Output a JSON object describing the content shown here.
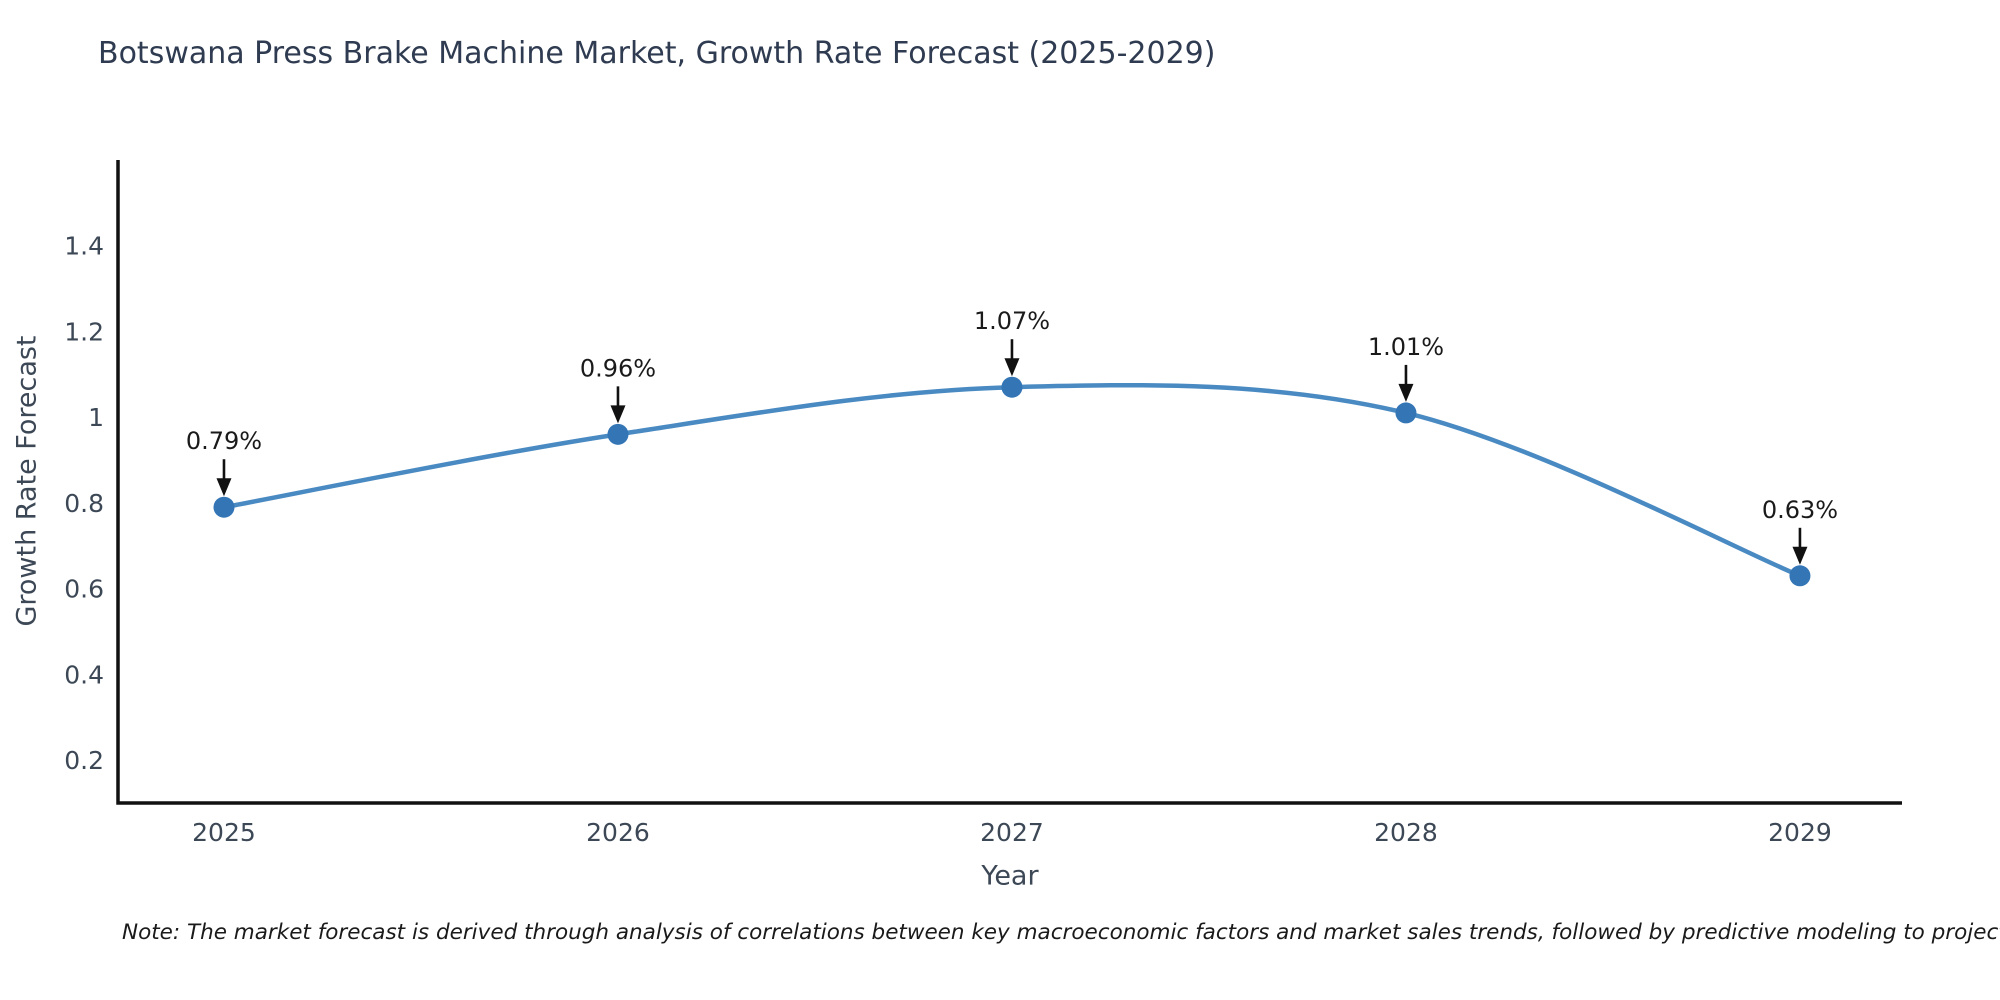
{
  "chart_data": {
    "type": "line",
    "title": "Botswana Press Brake Machine Market, Growth Rate Forecast (2025-2029)",
    "xlabel": "Year",
    "ylabel": "Growth Rate Forecast",
    "x": [
      2025,
      2026,
      2027,
      2028,
      2029
    ],
    "values": [
      0.79,
      0.96,
      1.07,
      1.01,
      0.63
    ],
    "point_labels": [
      "0.79%",
      "0.96%",
      "1.07%",
      "1.01%",
      "0.63%"
    ],
    "x_tick_labels": [
      "2025",
      "2026",
      "2027",
      "2028",
      "2029"
    ],
    "y_tick_values": [
      0.2,
      0.4,
      0.6,
      0.8,
      1,
      1.2,
      1.4
    ],
    "y_tick_labels": [
      "0.2",
      "0.4",
      "0.6",
      "0.8",
      "1",
      "1.2",
      "1.4"
    ],
    "xlim": [
      2024.731,
      2029.259
    ],
    "ylim": [
      0.1,
      1.6
    ],
    "grid": false,
    "legend": "none",
    "line_smoothing": "spline",
    "annotation_arrow": "down-arrow"
  },
  "note": {
    "text": "Note: The market forecast is derived through analysis of correlations between key macroeconomic factors and market sales trends, followed by predictive modeling to project future sales"
  },
  "colors": {
    "line": "#4a8ac2",
    "marker": "#3375b5",
    "axis_spine": "#111111",
    "title_text": "#2f3b50",
    "tick_text": "#3d4856",
    "annotation_text": "#1a1a1a",
    "arrow": "#111111",
    "background": "#ffffff"
  }
}
